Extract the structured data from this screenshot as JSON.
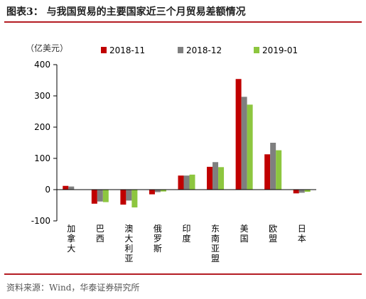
{
  "header": {
    "title": "图表3：  与我国贸易的主要国家近三个月贸易差额情况"
  },
  "footer": {
    "source": "资料来源：Wind，华泰证券研究所"
  },
  "chart_data": {
    "type": "bar",
    "unit_label": "（亿美元）",
    "categories": [
      "加拿大",
      "巴西",
      "澳大利亚",
      "俄罗斯",
      "印度",
      "东南亚盟",
      "美国",
      "欧盟",
      "日本"
    ],
    "series": [
      {
        "name": "2018-11",
        "color": "#c00000",
        "values": [
          12,
          -45,
          -48,
          -15,
          45,
          73,
          354,
          113,
          -12
        ]
      },
      {
        "name": "2018-12",
        "color": "#7f7f7f",
        "values": [
          10,
          -38,
          -35,
          -8,
          45,
          88,
          297,
          150,
          -10
        ]
      },
      {
        "name": "2019-01",
        "color": "#8dc63f",
        "values": [
          0,
          -40,
          -57,
          -6,
          48,
          72,
          272,
          126,
          -7
        ]
      }
    ],
    "ylim": [
      -100,
      400
    ],
    "yticks": [
      -100,
      0,
      100,
      200,
      300,
      400
    ],
    "grid": false,
    "legend": "top"
  }
}
